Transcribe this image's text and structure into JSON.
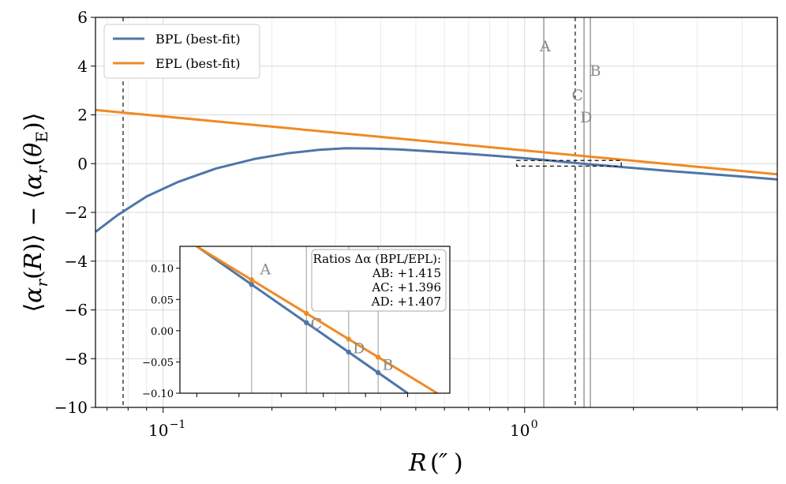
{
  "chart_data": [
    {
      "type": "line",
      "role": "main",
      "xscale": "log",
      "xlim": [
        0.065,
        5.0
      ],
      "ylim": [
        -10,
        6
      ],
      "grid": true,
      "xlabel": "R (″)",
      "ylabel": "⟨α_r(R)⟩ − ⟨α_r(θ_E)⟩",
      "yticks": [
        -10,
        -8,
        -6,
        -4,
        -2,
        0,
        2,
        4,
        6
      ],
      "ytick_labels": [
        "−10",
        "−8",
        "−6",
        "−4",
        "−2",
        "0",
        "2",
        "4",
        "6"
      ],
      "xticks": [
        0.1,
        1.0
      ],
      "xtick_labels": [
        [
          "10",
          "−1"
        ],
        [
          "10",
          "0"
        ]
      ],
      "legend": {
        "position": "top-left",
        "entries": [
          "BPL (best-fit)",
          "EPL (best-fit)"
        ]
      },
      "series": [
        {
          "name": "BPL (best-fit)",
          "color": "#4e76a8",
          "x": [
            0.065,
            0.075,
            0.09,
            0.11,
            0.14,
            0.18,
            0.22,
            0.27,
            0.32,
            0.38,
            0.45,
            0.55,
            0.7,
            0.9,
            1.1,
            1.35,
            1.6,
            2.0,
            2.5,
            3.2,
            4.0,
            5.0
          ],
          "y": [
            -2.8,
            -2.1,
            -1.35,
            -0.75,
            -0.2,
            0.2,
            0.42,
            0.57,
            0.63,
            0.62,
            0.58,
            0.5,
            0.4,
            0.28,
            0.17,
            0.04,
            -0.06,
            -0.18,
            -0.3,
            -0.42,
            -0.53,
            -0.65
          ]
        },
        {
          "name": "EPL (best-fit)",
          "color": "#f08a24",
          "x": [
            0.065,
            5.0
          ],
          "y": [
            2.2,
            -0.44
          ]
        }
      ],
      "vlines_dashed": [
        0.0775,
        1.38
      ],
      "vlines_gray": [
        1.13,
        1.46,
        1.52
      ],
      "point_labels": [
        {
          "text": "A",
          "x": 1.14,
          "y": 4.6
        },
        {
          "text": "B",
          "x": 1.57,
          "y": 3.6
        },
        {
          "text": "C",
          "x": 1.4,
          "y": 2.6
        },
        {
          "text": "D",
          "x": 1.48,
          "y": 1.7
        }
      ],
      "zoom_box": {
        "x": [
          0.95,
          1.85
        ],
        "y": [
          -0.1,
          0.13
        ]
      }
    },
    {
      "type": "line",
      "role": "inset",
      "xlim": [
        0.96,
        1.6
      ],
      "ylim": [
        -0.1,
        0.135
      ],
      "yticks": [
        -0.1,
        -0.05,
        0.0,
        0.05,
        0.1
      ],
      "ytick_labels": [
        "−0.10",
        "−0.05",
        "0.00",
        "0.05",
        "0.10"
      ],
      "series": [
        {
          "name": "BPL (best-fit)",
          "color": "#4e76a8",
          "x": [
            1.0,
            1.5
          ],
          "y": [
            0.135,
            -0.1
          ]
        },
        {
          "name": "EPL (best-fit)",
          "color": "#f08a24",
          "x": [
            1.0,
            1.57
          ],
          "y": [
            0.135,
            -0.1
          ]
        }
      ],
      "vlines_gray": [
        1.13,
        1.26,
        1.36,
        1.43
      ],
      "markers": [
        {
          "series": "BPL (best-fit)",
          "x": [
            1.13,
            1.26,
            1.36,
            1.43
          ]
        },
        {
          "series": "EPL (best-fit)",
          "x": [
            1.13,
            1.26,
            1.36,
            1.43
          ]
        }
      ],
      "point_labels": [
        {
          "text": "A",
          "x": 1.15,
          "y": 0.09
        },
        {
          "text": "C",
          "x": 1.27,
          "y": 0.003
        },
        {
          "text": "D",
          "x": 1.37,
          "y": -0.036
        },
        {
          "text": "B",
          "x": 1.44,
          "y": -0.063
        }
      ],
      "ratios": {
        "title": "Ratios Δα (BPL/EPL):",
        "lines": [
          "AB: +1.415",
          "AC: +1.396",
          "AD: +1.407"
        ]
      }
    }
  ]
}
